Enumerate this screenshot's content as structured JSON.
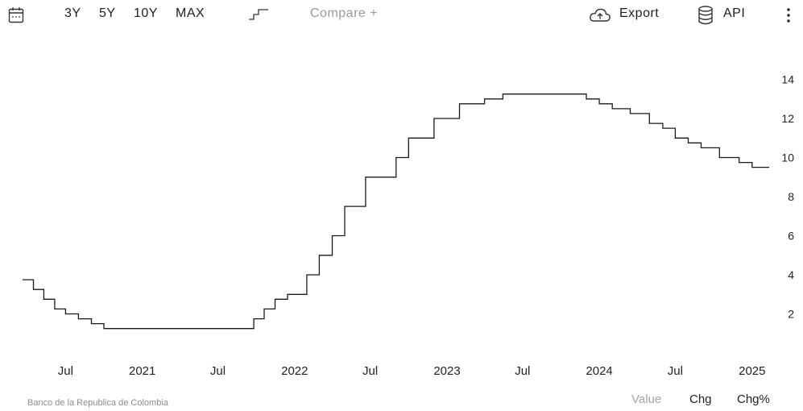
{
  "toolbar": {
    "ranges": [
      "3Y",
      "5Y",
      "10Y",
      "MAX"
    ],
    "compare_label": "Compare +",
    "export_label": "Export",
    "api_label": "API",
    "icons": {
      "calendar": "calendar-icon",
      "step": "step-line-icon",
      "export": "cloud-upload-icon",
      "api": "database-icon",
      "menu": "kebab-menu-icon"
    }
  },
  "chart_data": {
    "type": "line",
    "step": true,
    "xlabel": "",
    "ylabel": "",
    "ylim": [
      0,
      16
    ],
    "yticks": [
      "2",
      "4",
      "6",
      "8",
      "10",
      "12",
      "14"
    ],
    "xticks": [
      {
        "x": "2020-07",
        "label": "Jul"
      },
      {
        "x": "2021-01",
        "label": "2021"
      },
      {
        "x": "2021-07",
        "label": "Jul"
      },
      {
        "x": "2022-01",
        "label": "2022"
      },
      {
        "x": "2022-07",
        "label": "Jul"
      },
      {
        "x": "2023-01",
        "label": "2023"
      },
      {
        "x": "2023-07",
        "label": "Jul"
      },
      {
        "x": "2024-01",
        "label": "2024"
      },
      {
        "x": "2024-07",
        "label": "Jul"
      },
      {
        "x": "2025-01",
        "label": "2025"
      }
    ],
    "grid": false,
    "series": [
      {
        "color": "#1a1a1a",
        "x": [
          "2020-03-20",
          "2020-04-15",
          "2020-05-10",
          "2020-06-05",
          "2020-07-01",
          "2020-08-01",
          "2020-09-01",
          "2020-10-01",
          "2020-11-01",
          "2021-09-25",
          "2021-10-20",
          "2021-11-15",
          "2021-12-15",
          "2022-01-30",
          "2022-03-01",
          "2022-04-01",
          "2022-05-01",
          "2022-06-20",
          "2022-08-01",
          "2022-09-01",
          "2022-10-01",
          "2022-11-01",
          "2022-12-01",
          "2023-01-31",
          "2023-04-01",
          "2023-05-15",
          "2023-12-01",
          "2024-01-01",
          "2024-02-01",
          "2024-03-15",
          "2024-04-30",
          "2024-06-01",
          "2024-07-01",
          "2024-08-01",
          "2024-09-01",
          "2024-10-15",
          "2024-12-01",
          "2025-01-01",
          "2025-02-01"
        ],
        "values": [
          3.75,
          3.25,
          2.75,
          2.25,
          2.0,
          1.75,
          1.5,
          1.25,
          1.25,
          1.75,
          2.25,
          2.75,
          3.0,
          4.0,
          5.0,
          6.0,
          7.5,
          9.0,
          9.0,
          10.0,
          11.0,
          11.0,
          12.0,
          12.75,
          13.0,
          13.25,
          13.0,
          12.75,
          12.5,
          12.25,
          11.75,
          11.5,
          11.0,
          10.75,
          10.5,
          10.0,
          9.75,
          9.5,
          9.5
        ]
      }
    ]
  },
  "footer": {
    "source": "Banco de la Republica de Colombia",
    "tabs": [
      "Value",
      "Chg",
      "Chg%"
    ]
  }
}
